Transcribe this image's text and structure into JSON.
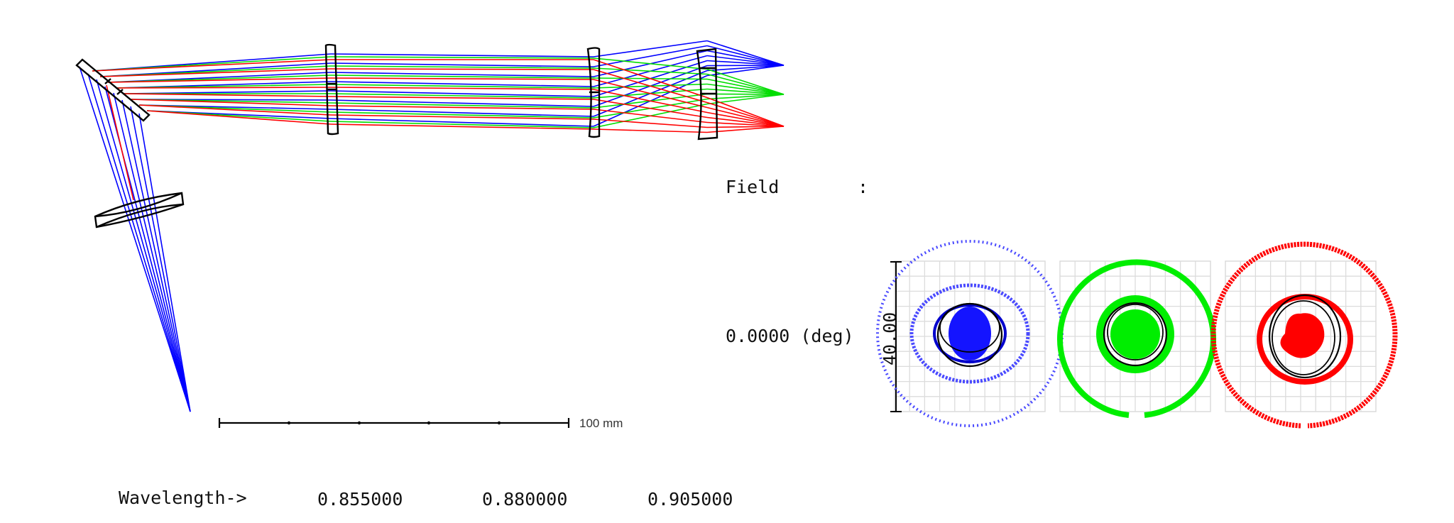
{
  "layout_plot": {
    "scale_bar_label": "100 mm",
    "ray_colors": [
      "#0000ff",
      "#00dd00",
      "#ff0000"
    ]
  },
  "wavelength_row": {
    "label": "Wavelength->",
    "values": [
      "0.855000",
      "0.880000",
      "0.905000"
    ]
  },
  "spot_diagram": {
    "field_label": "Field",
    "field_separator": ":",
    "field_value": "0.0000 (deg)",
    "scale_label": "40.00",
    "colors": [
      "#2222ff",
      "#00ee00",
      "#ff0000"
    ]
  }
}
